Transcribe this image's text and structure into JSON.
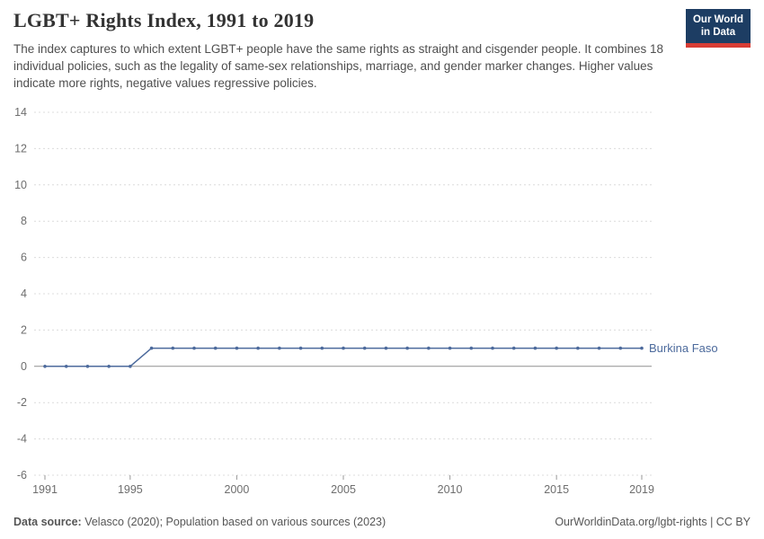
{
  "header": {
    "title": "LGBT+ Rights Index, 1991 to 2019",
    "subtitle": "The index captures to which extent LGBT+ people have the same rights as straight and cisgender people. It combines 18 individual policies, such as the legality of same-sex relationships, marriage, and gender marker changes. Higher values indicate more rights, negative values regressive policies.",
    "logo": {
      "line1": "Our World",
      "line2": "in Data"
    }
  },
  "footer": {
    "datasource_label": "Data source:",
    "datasource_text": " Velasco (2020); Population based on various sources (2023)",
    "credit": "OurWorldinData.org/lgbt-rights | CC BY"
  },
  "chart_data": {
    "type": "line",
    "title": "LGBT+ Rights Index, 1991 to 2019",
    "xlabel": "",
    "ylabel": "",
    "xlim": [
      1991,
      2019
    ],
    "ylim": [
      -6,
      14
    ],
    "yticks": [
      -6,
      -4,
      -2,
      0,
      2,
      4,
      6,
      8,
      10,
      12,
      14
    ],
    "xticks": [
      1991,
      1995,
      2000,
      2005,
      2010,
      2015,
      2019
    ],
    "grid": "horizontal-dashed",
    "legend_position": "end-of-line-label",
    "colors": {
      "series": "#4c6a9c",
      "grid": "#dcdcdc",
      "zero_line": "#8f8f8f",
      "tick_label": "#6e6e6e"
    },
    "x": [
      1991,
      1992,
      1993,
      1994,
      1995,
      1996,
      1997,
      1998,
      1999,
      2000,
      2001,
      2002,
      2003,
      2004,
      2005,
      2006,
      2007,
      2008,
      2009,
      2010,
      2011,
      2012,
      2013,
      2014,
      2015,
      2016,
      2017,
      2018,
      2019
    ],
    "series": [
      {
        "name": "Burkina Faso",
        "values": [
          0,
          0,
          0,
          0,
          0,
          1,
          1,
          1,
          1,
          1,
          1,
          1,
          1,
          1,
          1,
          1,
          1,
          1,
          1,
          1,
          1,
          1,
          1,
          1,
          1,
          1,
          1,
          1,
          1
        ]
      }
    ]
  }
}
